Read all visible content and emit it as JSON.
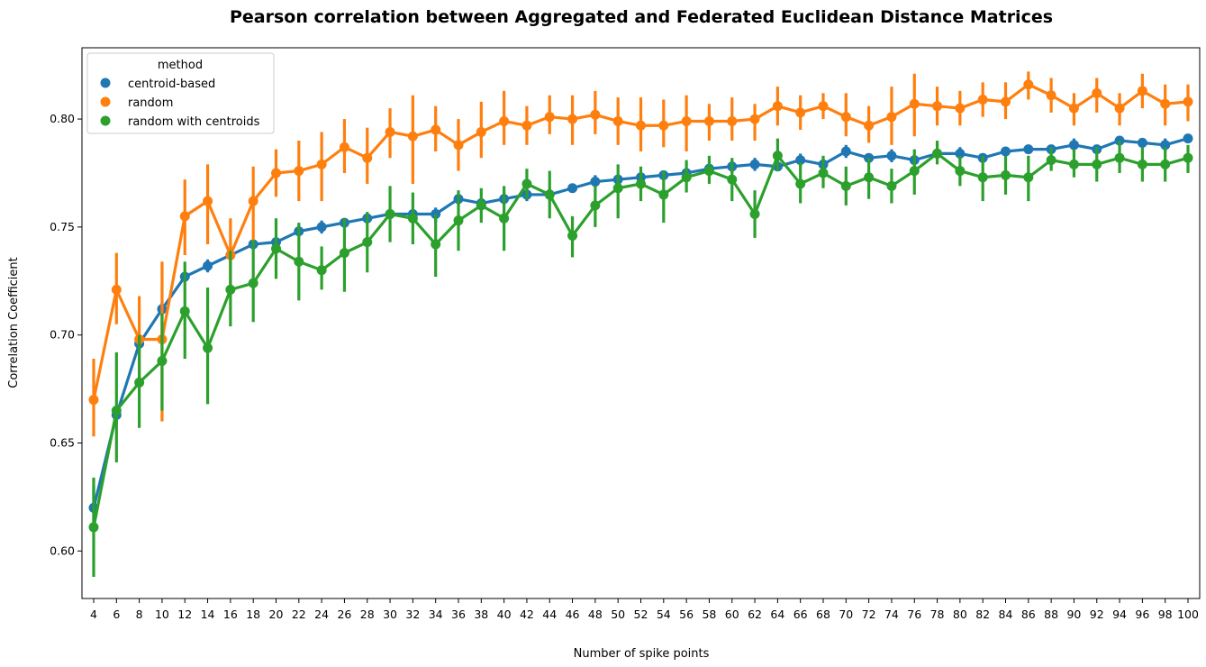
{
  "chart_data": {
    "type": "line",
    "title": "Pearson correlation between Aggregated and Federated Euclidean Distance Matrices",
    "xlabel": "Number of spike points",
    "ylabel": "Correlation Coefficient",
    "ylim": [
      0.578,
      0.833
    ],
    "yticks": [
      "0.60",
      "0.65",
      "0.70",
      "0.75",
      "0.80"
    ],
    "ytick_values": [
      0.6,
      0.65,
      0.7,
      0.75,
      0.8
    ],
    "categories": [
      "4",
      "6",
      "8",
      "10",
      "12",
      "14",
      "16",
      "18",
      "20",
      "22",
      "24",
      "26",
      "28",
      "30",
      "32",
      "34",
      "36",
      "38",
      "40",
      "42",
      "44",
      "46",
      "48",
      "50",
      "52",
      "54",
      "56",
      "58",
      "60",
      "62",
      "64",
      "66",
      "68",
      "70",
      "72",
      "74",
      "76",
      "78",
      "80",
      "82",
      "84",
      "86",
      "88",
      "90",
      "92",
      "94",
      "96",
      "98",
      "100"
    ],
    "legend": {
      "title": "method",
      "placement": "top-left"
    },
    "grid": false,
    "series": [
      {
        "name": "centroid-based",
        "color": "#1f77b4",
        "values": [
          0.62,
          0.663,
          0.696,
          0.712,
          0.727,
          0.732,
          0.737,
          0.742,
          0.743,
          0.748,
          0.75,
          0.752,
          0.754,
          0.756,
          0.756,
          0.756,
          0.763,
          0.761,
          0.763,
          0.765,
          0.765,
          0.768,
          0.771,
          0.772,
          0.773,
          0.774,
          0.775,
          0.777,
          0.778,
          0.779,
          0.778,
          0.781,
          0.779,
          0.785,
          0.782,
          0.783,
          0.781,
          0.784,
          0.784,
          0.782,
          0.785,
          0.786,
          0.786,
          0.788,
          0.786,
          0.79,
          0.789,
          0.788,
          0.791
        ],
        "err_low": [
          0.61,
          0.659,
          0.693,
          0.709,
          0.725,
          0.729,
          0.735,
          0.74,
          0.741,
          0.746,
          0.747,
          0.75,
          0.752,
          0.754,
          0.754,
          0.752,
          0.76,
          0.759,
          0.76,
          0.762,
          0.762,
          0.766,
          0.769,
          0.77,
          0.771,
          0.772,
          0.773,
          0.775,
          0.775,
          0.776,
          0.776,
          0.778,
          0.776,
          0.782,
          0.78,
          0.78,
          0.779,
          0.782,
          0.781,
          0.78,
          0.783,
          0.784,
          0.784,
          0.785,
          0.784,
          0.788,
          0.787,
          0.785,
          0.789
        ],
        "err_high": [
          0.63,
          0.667,
          0.699,
          0.715,
          0.729,
          0.735,
          0.739,
          0.744,
          0.745,
          0.75,
          0.753,
          0.754,
          0.756,
          0.758,
          0.758,
          0.759,
          0.765,
          0.763,
          0.766,
          0.768,
          0.768,
          0.77,
          0.774,
          0.774,
          0.775,
          0.776,
          0.777,
          0.779,
          0.781,
          0.782,
          0.78,
          0.784,
          0.782,
          0.788,
          0.784,
          0.786,
          0.783,
          0.786,
          0.787,
          0.784,
          0.787,
          0.788,
          0.788,
          0.791,
          0.788,
          0.792,
          0.791,
          0.791,
          0.793
        ]
      },
      {
        "name": "random",
        "color": "#ff7f0e",
        "values": [
          0.67,
          0.721,
          0.698,
          0.698,
          0.755,
          0.762,
          0.737,
          0.762,
          0.775,
          0.776,
          0.779,
          0.787,
          0.782,
          0.794,
          0.792,
          0.795,
          0.788,
          0.794,
          0.799,
          0.797,
          0.801,
          0.8,
          0.802,
          0.799,
          0.797,
          0.797,
          0.799,
          0.799,
          0.799,
          0.8,
          0.806,
          0.803,
          0.806,
          0.801,
          0.797,
          0.801,
          0.807,
          0.806,
          0.805,
          0.809,
          0.808,
          0.816,
          0.811,
          0.805,
          0.812,
          0.805,
          0.813,
          0.807,
          0.808
        ],
        "err_low": [
          0.653,
          0.705,
          0.677,
          0.66,
          0.737,
          0.742,
          0.722,
          0.742,
          0.764,
          0.762,
          0.762,
          0.775,
          0.77,
          0.782,
          0.77,
          0.785,
          0.776,
          0.782,
          0.788,
          0.788,
          0.793,
          0.788,
          0.793,
          0.788,
          0.785,
          0.787,
          0.785,
          0.79,
          0.79,
          0.79,
          0.797,
          0.795,
          0.8,
          0.792,
          0.789,
          0.788,
          0.792,
          0.797,
          0.797,
          0.801,
          0.8,
          0.809,
          0.803,
          0.797,
          0.803,
          0.797,
          0.805,
          0.797,
          0.799
        ],
        "err_high": [
          0.689,
          0.738,
          0.718,
          0.734,
          0.772,
          0.779,
          0.754,
          0.778,
          0.786,
          0.79,
          0.794,
          0.8,
          0.796,
          0.805,
          0.811,
          0.806,
          0.8,
          0.808,
          0.813,
          0.806,
          0.811,
          0.811,
          0.813,
          0.81,
          0.81,
          0.809,
          0.811,
          0.807,
          0.81,
          0.807,
          0.815,
          0.811,
          0.812,
          0.812,
          0.806,
          0.815,
          0.821,
          0.815,
          0.813,
          0.817,
          0.817,
          0.822,
          0.819,
          0.812,
          0.819,
          0.812,
          0.821,
          0.816,
          0.816
        ]
      },
      {
        "name": "random with centroids",
        "color": "#2ca02c",
        "values": [
          0.611,
          0.665,
          0.678,
          0.688,
          0.711,
          0.694,
          0.721,
          0.724,
          0.74,
          0.734,
          0.73,
          0.738,
          0.743,
          0.756,
          0.754,
          0.742,
          0.753,
          0.76,
          0.754,
          0.77,
          0.765,
          0.746,
          0.76,
          0.768,
          0.77,
          0.765,
          0.773,
          0.776,
          0.772,
          0.756,
          0.783,
          0.77,
          0.775,
          0.769,
          0.773,
          0.769,
          0.776,
          0.784,
          0.776,
          0.773,
          0.774,
          0.773,
          0.781,
          0.779,
          0.779,
          0.782,
          0.779,
          0.779,
          0.782
        ],
        "err_low": [
          0.588,
          0.641,
          0.657,
          0.665,
          0.689,
          0.668,
          0.704,
          0.706,
          0.726,
          0.716,
          0.721,
          0.72,
          0.729,
          0.743,
          0.742,
          0.727,
          0.739,
          0.752,
          0.739,
          0.763,
          0.754,
          0.736,
          0.75,
          0.754,
          0.762,
          0.752,
          0.766,
          0.77,
          0.762,
          0.745,
          0.776,
          0.761,
          0.768,
          0.76,
          0.763,
          0.761,
          0.765,
          0.779,
          0.769,
          0.762,
          0.765,
          0.762,
          0.776,
          0.773,
          0.771,
          0.775,
          0.771,
          0.771,
          0.775
        ],
        "err_high": [
          0.634,
          0.692,
          0.7,
          0.71,
          0.734,
          0.722,
          0.739,
          0.744,
          0.754,
          0.752,
          0.741,
          0.754,
          0.757,
          0.769,
          0.766,
          0.756,
          0.767,
          0.768,
          0.769,
          0.777,
          0.776,
          0.755,
          0.769,
          0.779,
          0.778,
          0.776,
          0.781,
          0.783,
          0.782,
          0.767,
          0.791,
          0.78,
          0.783,
          0.778,
          0.782,
          0.777,
          0.786,
          0.79,
          0.783,
          0.783,
          0.783,
          0.783,
          0.787,
          0.786,
          0.787,
          0.79,
          0.787,
          0.787,
          0.788
        ]
      }
    ]
  }
}
